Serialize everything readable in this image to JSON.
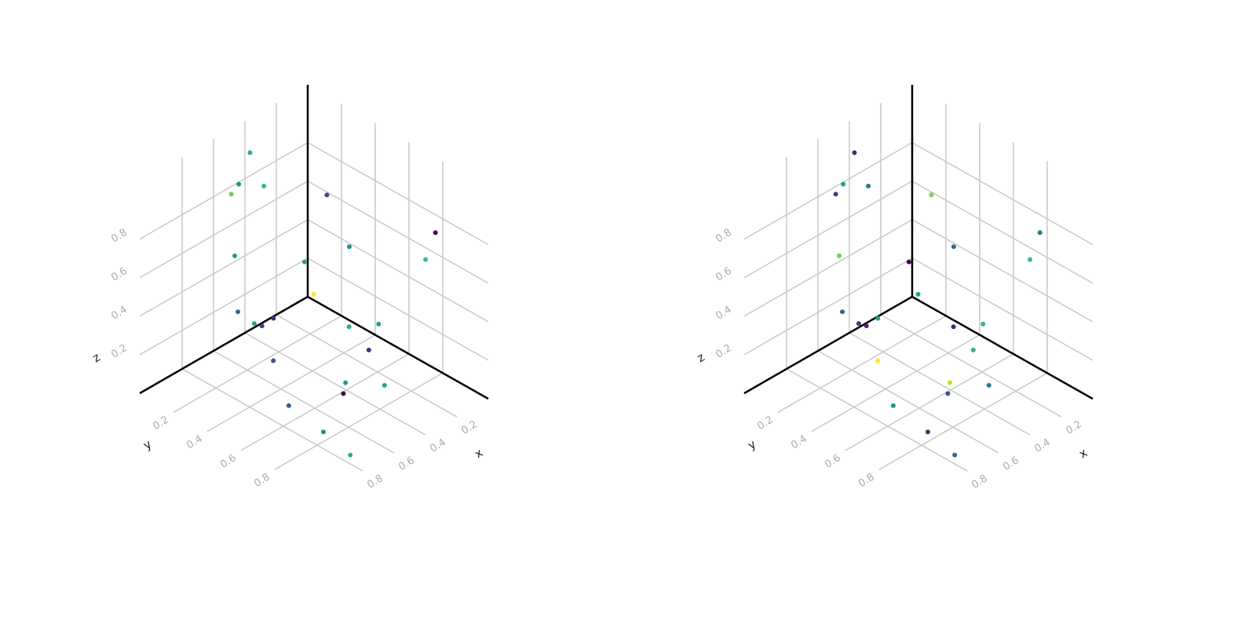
{
  "chart_data": [
    {
      "type": "scatter3d",
      "xlabel": "x",
      "ylabel": "y",
      "zlabel": "z",
      "x": [
        0.4,
        0.45,
        0.435,
        0.53,
        0.34,
        0.1,
        0.235,
        0.12,
        0.54,
        0.3,
        0.075,
        0.52,
        0.48,
        0.415,
        0.39,
        0.36,
        0.36,
        0.32,
        0.52,
        0.45,
        0.415,
        0.36,
        0.69,
        0.76,
        0.75
      ],
      "y": [
        0.03,
        0.01,
        0.145,
        0.04,
        0.43,
        0.85,
        0.465,
        0.81,
        0.07,
        0.26,
        0.105,
        0.07,
        0.13,
        0.115,
        0.16,
        0.58,
        0.755,
        0.66,
        0.28,
        0.63,
        0.61,
        0.79,
        0.53,
        0.8,
        0.95
      ],
      "z": [
        0.95,
        0.8,
        0.85,
        0.8,
        0.9,
        0.8,
        0.6,
        0.65,
        0.5,
        0.45,
        0.1,
        0.2,
        0.15,
        0.1,
        0.15,
        0.3,
        0.4,
        0.2,
        0.05,
        0.02,
        0.05,
        0.1,
        0.02,
        0.05,
        0.0
      ],
      "colors": [
        "#2db27d",
        "#21918c",
        "#35b779",
        "#6ece58",
        "#3e4a89",
        "#440154",
        "#21918c",
        "#3fbc73",
        "#1f9e89",
        "#25a18e",
        "#fde725",
        "#31688e",
        "#20a486",
        "#443983",
        "#482878",
        "#29af7f",
        "#25a18e",
        "#472d7b",
        "#3b528b",
        "#440154",
        "#1f9e89",
        "#22a884",
        "#355f8d",
        "#21918c",
        "#2db27d"
      ],
      "xlim": [
        0,
        1.07
      ],
      "ylim": [
        0,
        1.07
      ],
      "zlim": [
        0,
        1.1
      ],
      "xticks": [
        0.2,
        0.4,
        0.6,
        0.8
      ],
      "yticks": [
        0.2,
        0.4,
        0.6,
        0.8
      ],
      "zticks": [
        0.2,
        0.4,
        0.6,
        0.8
      ],
      "grid": true
    },
    {
      "type": "scatter3d",
      "xlabel": "x",
      "ylabel": "y",
      "zlabel": "z",
      "x": [
        0.4,
        0.45,
        0.435,
        0.53,
        0.34,
        0.1,
        0.235,
        0.12,
        0.54,
        0.3,
        0.075,
        0.52,
        0.48,
        0.415,
        0.39,
        0.36,
        0.36,
        0.32,
        0.52,
        0.45,
        0.415,
        0.36,
        0.69,
        0.76,
        0.75
      ],
      "y": [
        0.03,
        0.01,
        0.145,
        0.04,
        0.43,
        0.85,
        0.465,
        0.81,
        0.07,
        0.26,
        0.105,
        0.07,
        0.13,
        0.115,
        0.16,
        0.58,
        0.755,
        0.66,
        0.28,
        0.63,
        0.61,
        0.79,
        0.53,
        0.8,
        0.95
      ],
      "z": [
        0.95,
        0.8,
        0.85,
        0.8,
        0.9,
        0.8,
        0.6,
        0.65,
        0.5,
        0.45,
        0.1,
        0.2,
        0.15,
        0.1,
        0.15,
        0.3,
        0.4,
        0.2,
        0.05,
        0.02,
        0.05,
        0.1,
        0.02,
        0.05,
        0.0
      ],
      "colors": [
        "#482878",
        "#25a18e",
        "#2a788e",
        "#443983",
        "#7ad151",
        "#2a788e",
        "#31688e",
        "#3fbc73",
        "#6ece58",
        "#440154",
        "#1fa187",
        "#31688e",
        "#443983",
        "#482878",
        "#20a486",
        "#482878",
        "#35b779",
        "#2db27d",
        "#fde725",
        "#3b528b",
        "#bddf26",
        "#2a788e",
        "#21918c",
        "#472d7b",
        "#31688e"
      ],
      "xlim": [
        0,
        1.07
      ],
      "ylim": [
        0,
        1.07
      ],
      "zlim": [
        0,
        1.1
      ],
      "xticks": [
        0.2,
        0.4,
        0.6,
        0.8
      ],
      "yticks": [
        0.2,
        0.4,
        0.6,
        0.8
      ],
      "zticks": [
        0.2,
        0.4,
        0.6,
        0.8
      ],
      "grid": true
    }
  ]
}
